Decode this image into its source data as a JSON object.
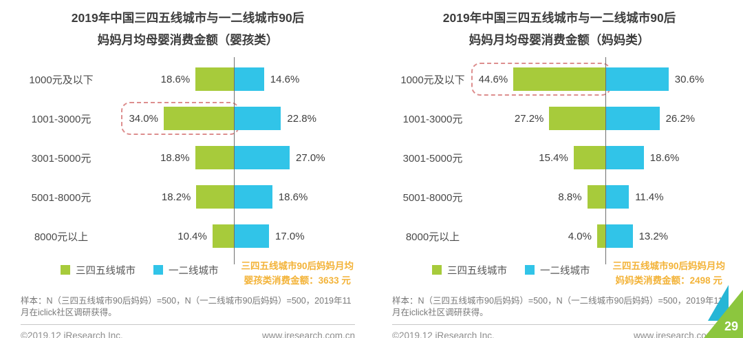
{
  "colors": {
    "green": "#a7cb3b",
    "blue": "#31c4e8",
    "orange": "#f3b338",
    "highlight": "#dd8e8e",
    "axis": "#6e6e6e",
    "teal": "#26b6d6",
    "corner_green": "#8cc63e"
  },
  "page": {
    "page_number": "29"
  },
  "charts": [
    {
      "title_line1": "2019年中国三四五线城市与一二线城市90后",
      "title_line2": "妈妈月均母婴消费金额（婴孩类）",
      "legend": [
        "三四五线城市",
        "一二线城市"
      ],
      "rows": [
        {
          "category": "1000元及以下",
          "left_label": "18.6%",
          "right_label": "14.6%"
        },
        {
          "category": "1001-3000元",
          "left_label": "34.0%",
          "right_label": "22.8%"
        },
        {
          "category": "3001-5000元",
          "left_label": "18.8%",
          "right_label": "27.0%"
        },
        {
          "category": "5001-8000元",
          "left_label": "18.2%",
          "right_label": "18.6%"
        },
        {
          "category": "8000元以上",
          "left_label": "10.4%",
          "right_label": "17.0%"
        }
      ],
      "annotation_line1": "三四五线城市90后妈妈月均",
      "annotation_line2": "婴孩类消费金额：3633 元",
      "sample_note": "样本：N（三四五线城市90后妈妈）=500，N（一二线城市90后妈妈）=500，2019年11月在iclick社区调研获得。",
      "copyright": "©2019.12 iResearch Inc.",
      "website": "www.iresearch.com.cn"
    },
    {
      "title_line1": "2019年中国三四五线城市与一二线城市90后",
      "title_line2": "妈妈月均母婴消费金额（妈妈类）",
      "legend": [
        "三四五线城市",
        "一二线城市"
      ],
      "rows": [
        {
          "category": "1000元及以下",
          "left_label": "44.6%",
          "right_label": "30.6%"
        },
        {
          "category": "1001-3000元",
          "left_label": "27.2%",
          "right_label": "26.2%"
        },
        {
          "category": "3001-5000元",
          "left_label": "15.4%",
          "right_label": "18.6%"
        },
        {
          "category": "5001-8000元",
          "left_label": "8.8%",
          "right_label": "11.4%"
        },
        {
          "category": "8000元以上",
          "left_label": "4.0%",
          "right_label": "13.2%"
        }
      ],
      "annotation_line1": "三四五线城市90后妈妈月均",
      "annotation_line2": "妈妈类消费金额：2498 元",
      "sample_note": "样本：N（三四五线城市90后妈妈）=500，N（一二线城市90后妈妈）=500，2019年11月在iclick社区调研获得。",
      "copyright": "©2019.12 iResearch Inc.",
      "website": "www.iresearch.com.cn"
    }
  ],
  "chart_data": [
    {
      "type": "bar",
      "subtype": "horizontal-butterfly",
      "title": "2019年中国三四五线城市与一二线城市90后妈妈月均母婴消费金额（婴孩类）",
      "categories": [
        "1000元及以下",
        "1001-3000元",
        "3001-5000元",
        "5001-8000元",
        "8000元以上"
      ],
      "series": [
        {
          "name": "三四五线城市",
          "values": [
            18.6,
            34.0,
            18.8,
            18.2,
            10.4
          ]
        },
        {
          "name": "一二线城市",
          "values": [
            14.6,
            22.8,
            27.0,
            18.6,
            17.0
          ]
        }
      ],
      "unit": "%",
      "legend_position": "bottom-left",
      "axis": "shared center vertical axis, 三四五线城市 grows left, 一二线城市 grows right",
      "highlighted": {
        "category": "1001-3000元",
        "series": "三四五线城市",
        "value": 34.0
      },
      "annotation": "三四五线城市90后妈妈月均婴孩类消费金额：3633 元"
    },
    {
      "type": "bar",
      "subtype": "horizontal-butterfly",
      "title": "2019年中国三四五线城市与一二线城市90后妈妈月均母婴消费金额（妈妈类）",
      "categories": [
        "1000元及以下",
        "1001-3000元",
        "3001-5000元",
        "5001-8000元",
        "8000元以上"
      ],
      "series": [
        {
          "name": "三四五线城市",
          "values": [
            44.6,
            27.2,
            15.4,
            8.8,
            4.0
          ]
        },
        {
          "name": "一二线城市",
          "values": [
            30.6,
            26.2,
            18.6,
            11.4,
            13.2
          ]
        }
      ],
      "unit": "%",
      "legend_position": "bottom-left",
      "axis": "shared center vertical axis, 三四五线城市 grows left, 一二线城市 grows right",
      "highlighted": {
        "category": "1000元及以下",
        "series": "三四五线城市",
        "value": 44.6
      },
      "annotation": "三四五线城市90后妈妈月均妈妈类消费金额：2498 元"
    }
  ]
}
